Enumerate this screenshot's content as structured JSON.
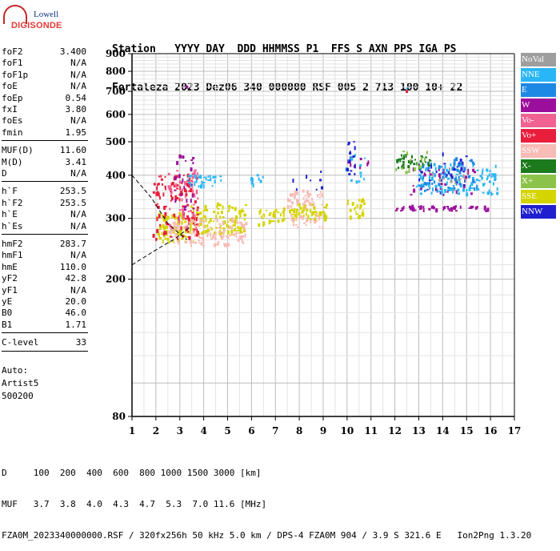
{
  "logo": {
    "line1": "Lowell",
    "line2": "DIGISONDE"
  },
  "header": {
    "line1": "Station   YYYY DAY  DDD HHMMSS P1  FFS S AXN PPS IGA PS",
    "line2": "Fortaleza 2023 Dez06 340 000000 RSF 005 2 713 100 10+ 22"
  },
  "params": [
    {
      "name": "foF2",
      "value": "3.400"
    },
    {
      "name": "foF1",
      "value": "N/A"
    },
    {
      "name": "foF1p",
      "value": "N/A"
    },
    {
      "name": "foE",
      "value": "N/A"
    },
    {
      "name": "foEp",
      "value": "0.54"
    },
    {
      "name": "fxI",
      "value": "3.80"
    },
    {
      "name": "foEs",
      "value": "N/A"
    },
    {
      "name": "fmin",
      "value": "1.95"
    },
    {
      "name": "MUF(D)",
      "value": "11.60"
    },
    {
      "name": "M(D)",
      "value": "3.41"
    },
    {
      "name": "D",
      "value": "N/A"
    },
    {
      "name": "h`F",
      "value": "253.5"
    },
    {
      "name": "h`F2",
      "value": "253.5"
    },
    {
      "name": "h`E",
      "value": "N/A"
    },
    {
      "name": "h`Es",
      "value": "N/A"
    },
    {
      "name": "hmF2",
      "value": "283.7"
    },
    {
      "name": "hmF1",
      "value": "N/A"
    },
    {
      "name": "hmE",
      "value": "110.0"
    },
    {
      "name": "yF2",
      "value": "42.8"
    },
    {
      "name": "yF1",
      "value": "N/A"
    },
    {
      "name": "yE",
      "value": "20.0"
    },
    {
      "name": "B0",
      "value": "46.0"
    },
    {
      "name": "B1",
      "value": "1.71"
    },
    {
      "name": "C-level",
      "value": "33"
    }
  ],
  "autoscaling": {
    "line1": "Auto:",
    "line2": "Artist5",
    "line3": "500200"
  },
  "legend": [
    {
      "label": "NoVal",
      "color": "#9e9e9e"
    },
    {
      "label": "NNE",
      "color": "#29b6f6"
    },
    {
      "label": "E",
      "color": "#1e88e5"
    },
    {
      "label": "W",
      "color": "#9c0f9c"
    },
    {
      "label": "Vo-",
      "color": "#f06292"
    },
    {
      "label": "Vo+",
      "color": "#e91e3c"
    },
    {
      "label": "SSW",
      "color": "#f8bbb5"
    },
    {
      "label": "X-",
      "color": "#1b7a1b"
    },
    {
      "label": "X+",
      "color": "#8bc34a"
    },
    {
      "label": "SSE",
      "color": "#d4d400"
    },
    {
      "label": "NNW",
      "color": "#1f1fcf"
    }
  ],
  "footer": {
    "line1": "D     100  200  400  600  800 1000 1500 3000 [km]",
    "line2": "MUF   3.7  3.8  4.0  4.3  4.7  5.3  7.0 11.6 [MHz]",
    "line3": "FZA0M_2023340000000.RSF / 320fx256h 50 kHz 5.0 km / DPS-4 FZA0M 904 / 3.9 S 321.6 E   Ion2Png 1.3.20"
  },
  "chart_data": {
    "type": "scatter",
    "xlabel": "",
    "ylabel": "",
    "xlim": [
      1,
      17
    ],
    "ylim": [
      80,
      900
    ],
    "x_ticks": [
      1,
      2,
      3,
      4,
      5,
      6,
      7,
      8,
      9,
      10,
      11,
      12,
      13,
      14,
      15,
      16,
      17
    ],
    "y_ticks": [
      80,
      200,
      300,
      400,
      500,
      600,
      700,
      800,
      900
    ],
    "grid": true,
    "y_scale": "log",
    "series": [
      {
        "color": "#d4d400",
        "clusters": [
          {
            "f": [
              2.0,
              3.6
            ],
            "h": [
              255,
              310
            ],
            "n": 90
          },
          {
            "f": [
              3.4,
              5.8
            ],
            "h": [
              270,
              330
            ],
            "n": 110
          },
          {
            "f": [
              6.3,
              7.4
            ],
            "h": [
              285,
              320
            ],
            "n": 35
          },
          {
            "f": [
              7.6,
              9.2
            ],
            "h": [
              295,
              330
            ],
            "n": 60
          },
          {
            "f": [
              10.0,
              10.8
            ],
            "h": [
              300,
              340
            ],
            "n": 30
          }
        ]
      },
      {
        "color": "#f8bbb5",
        "clusters": [
          {
            "f": [
              2.3,
              5.8
            ],
            "h": [
              250,
              300
            ],
            "n": 120
          },
          {
            "f": [
              7.5,
              9.0
            ],
            "h": [
              320,
              360
            ],
            "n": 40
          },
          {
            "f": [
              7.5,
              9.0
            ],
            "h": [
              280,
              310
            ],
            "n": 25
          }
        ]
      },
      {
        "color": "#e91e3c",
        "clusters": [
          {
            "f": [
              1.9,
              3.8
            ],
            "h": [
              260,
              400
            ],
            "n": 110
          },
          {
            "f": [
              12.5,
              12.5
            ],
            "h": [
              700,
              700
            ],
            "n": 1
          }
        ]
      },
      {
        "color": "#f06292",
        "clusters": [
          {
            "f": [
              2.5,
              3.8
            ],
            "h": [
              270,
              420
            ],
            "n": 45
          }
        ]
      },
      {
        "color": "#9c0f9c",
        "clusters": [
          {
            "f": [
              2.8,
              3.6
            ],
            "h": [
              300,
              460
            ],
            "n": 25
          },
          {
            "f": [
              3.3,
              3.3
            ],
            "h": [
              720,
              720
            ],
            "n": 1
          },
          {
            "f": [
              12.0,
              16.0
            ],
            "h": [
              315,
              325
            ],
            "n": 50
          },
          {
            "f": [
              12.5,
              15.5
            ],
            "h": [
              350,
              420
            ],
            "n": 40
          },
          {
            "f": [
              10.0,
              11.0
            ],
            "h": [
              420,
              450
            ],
            "n": 10
          }
        ]
      },
      {
        "color": "#29b6f6",
        "clusters": [
          {
            "f": [
              3.3,
              4.8
            ],
            "h": [
              370,
              400
            ],
            "n": 30
          },
          {
            "f": [
              6.0,
              6.5
            ],
            "h": [
              370,
              400
            ],
            "n": 8
          },
          {
            "f": [
              9.9,
              10.8
            ],
            "h": [
              380,
              460
            ],
            "n": 15
          },
          {
            "f": [
              12.9,
              16.3
            ],
            "h": [
              350,
              430
            ],
            "n": 110
          },
          {
            "f": [
              12.5,
              12.5
            ],
            "h": [
              712,
              712
            ],
            "n": 1
          }
        ]
      },
      {
        "color": "#1e88e5",
        "clusters": [
          {
            "f": [
              13.0,
              15.5
            ],
            "h": [
              360,
              450
            ],
            "n": 60
          }
        ]
      },
      {
        "color": "#1f1fcf",
        "clusters": [
          {
            "f": [
              10.0,
              10.4
            ],
            "h": [
              400,
              500
            ],
            "n": 15
          },
          {
            "f": [
              13.0,
              15.0
            ],
            "h": [
              370,
              460
            ],
            "n": 25
          },
          {
            "f": [
              7.0,
              9.0
            ],
            "h": [
              360,
              410
            ],
            "n": 8
          }
        ]
      },
      {
        "color": "#1b7a1b",
        "clusters": [
          {
            "f": [
              12.1,
              13.5
            ],
            "h": [
              420,
              460
            ],
            "n": 35
          }
        ]
      },
      {
        "color": "#8bc34a",
        "clusters": [
          {
            "f": [
              12.0,
              13.5
            ],
            "h": [
              400,
              470
            ],
            "n": 15
          }
        ]
      },
      {
        "color": "#9e9e9e",
        "clusters": [
          {
            "f": [
              13.0,
              15.0
            ],
            "h": [
              350,
              420
            ],
            "n": 12
          }
        ]
      }
    ],
    "curves": [
      {
        "style": "dashed",
        "points": [
          [
            1.0,
            400
          ],
          [
            1.8,
            345
          ],
          [
            2.5,
            290
          ],
          [
            3.0,
            270
          ],
          [
            3.3,
            260
          ]
        ]
      },
      {
        "style": "dashed",
        "points": [
          [
            1.0,
            220
          ],
          [
            2.0,
            243
          ],
          [
            2.8,
            262
          ],
          [
            3.4,
            282
          ]
        ]
      }
    ]
  }
}
